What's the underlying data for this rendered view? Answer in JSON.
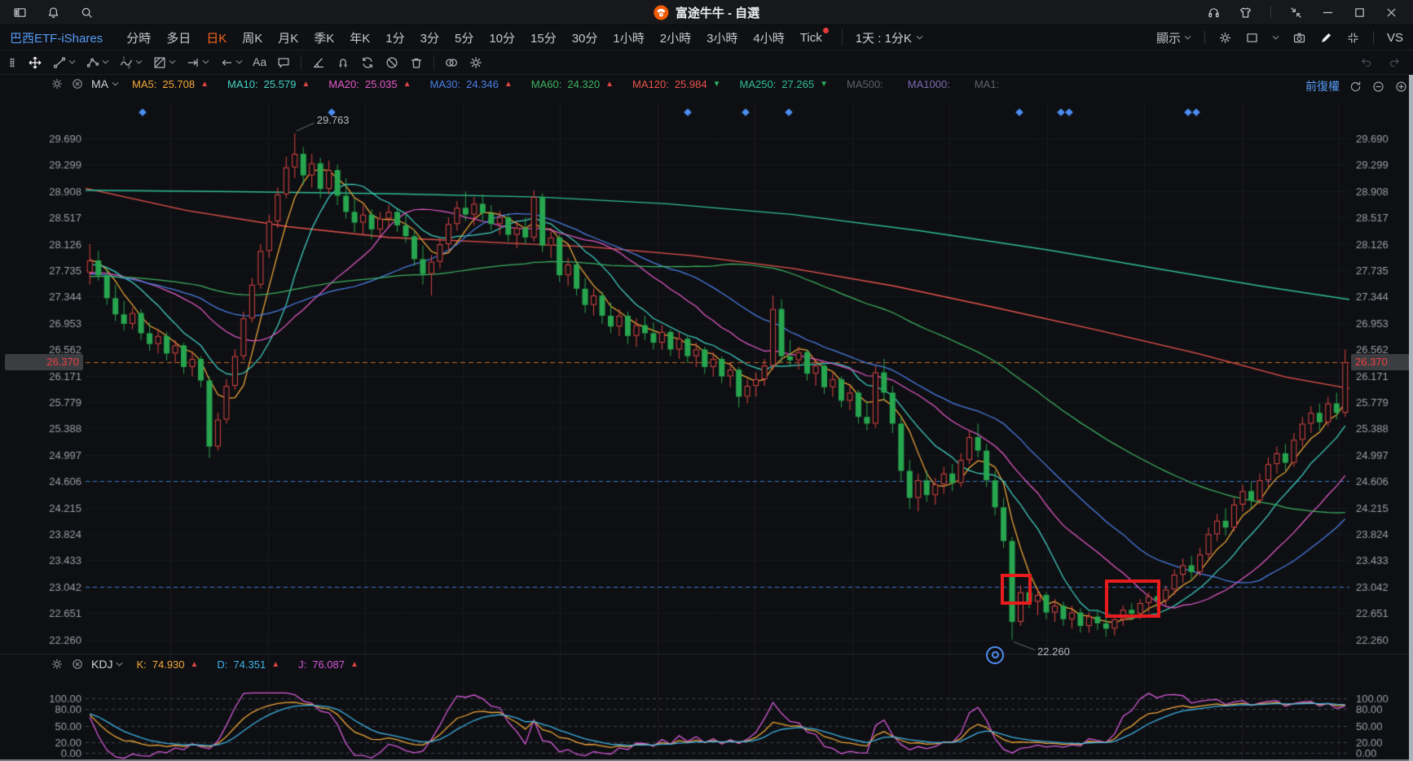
{
  "window": {
    "title": "富途牛牛 - 自選",
    "left_icons": [
      "panel-icon",
      "bell-icon",
      "search-icon"
    ],
    "right_icons": [
      "headset-icon",
      "shirt-icon",
      "divider",
      "snap-icon",
      "minimize-icon",
      "maximize-icon",
      "close-icon"
    ]
  },
  "tabbar": {
    "symbol": "巴西ETF-iShares",
    "tabs": [
      {
        "label": "分時"
      },
      {
        "label": "多日"
      },
      {
        "label": "日K",
        "active": true
      },
      {
        "label": "周K"
      },
      {
        "label": "月K"
      },
      {
        "label": "季K"
      },
      {
        "label": "年K"
      },
      {
        "label": "1分"
      },
      {
        "label": "3分"
      },
      {
        "label": "5分"
      },
      {
        "label": "10分"
      },
      {
        "label": "15分"
      },
      {
        "label": "30分"
      },
      {
        "label": "1小時"
      },
      {
        "label": "2小時"
      },
      {
        "label": "3小時"
      },
      {
        "label": "4小時"
      },
      {
        "label": "Tick",
        "dot": true
      }
    ],
    "combo_label": "1天 : 1分K",
    "display_label": "顯示",
    "vs_label": "VS",
    "right_icons": [
      "gear-icon",
      "layout-icon",
      "camera-icon",
      "pencil-icon",
      "shrink-icon"
    ]
  },
  "toolbar": {
    "tools": [
      {
        "icon": "grip-icon"
      },
      {
        "icon": "move-icon",
        "active": true
      },
      {
        "icon": "trend-line-icon",
        "chevron": true
      },
      {
        "icon": "polyline-icon",
        "chevron": true
      },
      {
        "icon": "wave-icon",
        "chevron": true
      },
      {
        "icon": "gann-icon",
        "chevron": true
      },
      {
        "icon": "measure-icon",
        "chevron": true
      },
      {
        "icon": "arrow-left-icon",
        "chevron": true
      },
      {
        "icon": "text-icon"
      },
      {
        "icon": "comment-icon"
      },
      {
        "divider": true
      },
      {
        "icon": "angle-icon"
      },
      {
        "icon": "magnet-icon"
      },
      {
        "icon": "replay-icon"
      },
      {
        "icon": "ban-icon"
      },
      {
        "icon": "trash-icon"
      },
      {
        "divider": true
      },
      {
        "icon": "compare-icon"
      },
      {
        "icon": "settings-icon"
      }
    ],
    "right_icons": [
      "undo-icon",
      "redo-icon"
    ]
  },
  "main_indicator": {
    "name": "MA",
    "items": [
      {
        "label": "MA5:",
        "value": "25.708",
        "color": "#f2a93b",
        "arrow": "up"
      },
      {
        "label": "MA10:",
        "value": "25.579",
        "color": "#41d3c6",
        "arrow": "up"
      },
      {
        "label": "MA20:",
        "value": "25.035",
        "color": "#e35ac8",
        "arrow": "up"
      },
      {
        "label": "MA30:",
        "value": "24.346",
        "color": "#4a7fe8",
        "arrow": "up"
      },
      {
        "label": "MA60:",
        "value": "24.320",
        "color": "#3db463",
        "arrow": "up"
      },
      {
        "label": "MA120:",
        "value": "25.984",
        "color": "#e8544e",
        "arrow": "down"
      },
      {
        "label": "MA250:",
        "value": "27.265",
        "color": "#2fbf9a",
        "arrow": "down"
      },
      {
        "label": "MA500:",
        "value": "",
        "color": "#5f646c"
      },
      {
        "label": "MA1000:",
        "value": "",
        "color": "#7e6bb5"
      },
      {
        "label": "MA1:",
        "value": "",
        "color": "#5f646c"
      }
    ],
    "adjust_label": "前復權",
    "right_icons": [
      "reset-icon",
      "zoom-out-icon",
      "zoom-in-icon"
    ]
  },
  "sub_indicator": {
    "name": "KDJ",
    "items": [
      {
        "label": "K:",
        "value": "74.930",
        "color": "#f2a93b",
        "arrow": "up"
      },
      {
        "label": "D:",
        "value": "74.351",
        "color": "#3eb2e8",
        "arrow": "up"
      },
      {
        "label": "J:",
        "value": "76.087",
        "color": "#d45ad8",
        "arrow": "up"
      }
    ]
  },
  "chart_data": {
    "type": "candlestick",
    "title": "巴西ETF-iShares 日K 前復權",
    "up_color": "#df4645",
    "down_color": "#27a54f",
    "y_axis_labels": [
      "29.690",
      "29.299",
      "28.908",
      "28.517",
      "28.126",
      "27.735",
      "27.344",
      "26.953",
      "26.562",
      "26.171",
      "25.779",
      "25.388",
      "24.997",
      "24.606",
      "24.215",
      "23.824",
      "23.433",
      "23.042",
      "22.651",
      "22.260"
    ],
    "current_price": {
      "value": 26.37,
      "label": "26.370",
      "line_color": "#c76a2b"
    },
    "levels": [
      {
        "price": 24.606,
        "color": "#3d7edb"
      },
      {
        "price": 23.042,
        "color": "#3d7edb"
      }
    ],
    "high_annotation": {
      "text": "29.763"
    },
    "low_annotation": {
      "text": "22.260"
    },
    "diamond_marker_xs": [
      175,
      407,
      844,
      915,
      968,
      1251,
      1302,
      1312,
      1458,
      1468
    ],
    "red_boxes": [
      {
        "i0": 107.2,
        "i1": 110.8,
        "p0": 22.78,
        "p1": 23.23
      },
      {
        "i0": 119.4,
        "i1": 125.9,
        "p0": 22.58,
        "p1": 23.15
      }
    ],
    "ma_computed": [
      {
        "period": 5,
        "color": "#f2a93b"
      },
      {
        "period": 10,
        "color": "#41d3c6"
      },
      {
        "period": 20,
        "color": "#e35ac8"
      },
      {
        "period": 30,
        "color": "#4a7fe8"
      },
      {
        "period": 60,
        "color": "#3db463"
      }
    ],
    "ma_overlays": [
      {
        "name": "MA120",
        "color": "#e8544e",
        "points": [
          [
            0,
            28.95
          ],
          [
            0.08,
            28.62
          ],
          [
            0.16,
            28.38
          ],
          [
            0.24,
            28.22
          ],
          [
            0.32,
            28.15
          ],
          [
            0.4,
            28.08
          ],
          [
            0.48,
            27.95
          ],
          [
            0.56,
            27.76
          ],
          [
            0.64,
            27.5
          ],
          [
            0.72,
            27.18
          ],
          [
            0.8,
            26.85
          ],
          [
            0.88,
            26.5
          ],
          [
            0.95,
            26.15
          ],
          [
            1,
            25.98
          ]
        ]
      },
      {
        "name": "MA250",
        "color": "#2fbf9a",
        "points": [
          [
            0,
            28.92
          ],
          [
            0.12,
            28.9
          ],
          [
            0.24,
            28.87
          ],
          [
            0.36,
            28.82
          ],
          [
            0.46,
            28.72
          ],
          [
            0.56,
            28.56
          ],
          [
            0.66,
            28.32
          ],
          [
            0.76,
            28.04
          ],
          [
            0.86,
            27.72
          ],
          [
            0.93,
            27.5
          ],
          [
            1,
            27.3
          ]
        ]
      }
    ],
    "candles": [
      [
        27.7,
        28.12,
        27.52,
        27.88
      ],
      [
        27.88,
        28.02,
        27.58,
        27.66
      ],
      [
        27.66,
        27.78,
        27.22,
        27.32
      ],
      [
        27.32,
        27.52,
        26.98,
        27.08
      ],
      [
        27.08,
        27.28,
        26.84,
        26.94
      ],
      [
        26.94,
        27.18,
        26.86,
        27.1
      ],
      [
        27.1,
        27.16,
        26.7,
        26.8
      ],
      [
        26.8,
        26.96,
        26.54,
        26.64
      ],
      [
        26.64,
        26.86,
        26.5,
        26.76
      ],
      [
        26.76,
        26.82,
        26.4,
        26.5
      ],
      [
        26.5,
        26.7,
        26.36,
        26.62
      ],
      [
        26.62,
        26.66,
        26.2,
        26.3
      ],
      [
        26.3,
        26.52,
        26.16,
        26.42
      ],
      [
        26.42,
        26.46,
        26.0,
        26.1
      ],
      [
        26.1,
        26.16,
        24.95,
        25.12
      ],
      [
        25.12,
        25.62,
        25.06,
        25.52
      ],
      [
        25.52,
        26.12,
        25.46,
        26.02
      ],
      [
        26.02,
        26.56,
        25.96,
        26.46
      ],
      [
        26.46,
        27.12,
        26.4,
        27.02
      ],
      [
        27.02,
        27.62,
        26.96,
        27.52
      ],
      [
        27.52,
        28.12,
        27.46,
        28.02
      ],
      [
        28.02,
        28.56,
        27.92,
        28.46
      ],
      [
        28.46,
        28.96,
        28.36,
        28.86
      ],
      [
        28.86,
        29.42,
        28.8,
        29.26
      ],
      [
        29.26,
        29.763,
        29.1,
        29.46
      ],
      [
        29.46,
        29.56,
        29.0,
        29.14
      ],
      [
        29.14,
        29.46,
        28.96,
        29.32
      ],
      [
        29.32,
        29.4,
        28.8,
        28.94
      ],
      [
        28.94,
        29.36,
        28.86,
        29.22
      ],
      [
        29.22,
        29.3,
        28.7,
        28.84
      ],
      [
        28.84,
        29.1,
        28.5,
        28.6
      ],
      [
        28.6,
        28.8,
        28.3,
        28.44
      ],
      [
        28.44,
        28.7,
        28.26,
        28.56
      ],
      [
        28.56,
        28.64,
        28.2,
        28.34
      ],
      [
        28.34,
        28.6,
        28.24,
        28.5
      ],
      [
        28.5,
        28.7,
        28.36,
        28.6
      ],
      [
        28.6,
        28.66,
        28.3,
        28.4
      ],
      [
        28.4,
        28.56,
        28.14,
        28.24
      ],
      [
        28.24,
        28.34,
        27.8,
        27.9
      ],
      [
        27.9,
        28.1,
        27.52,
        27.68
      ],
      [
        27.68,
        27.96,
        27.36,
        27.86
      ],
      [
        27.86,
        28.22,
        27.76,
        28.12
      ],
      [
        28.12,
        28.52,
        28.02,
        28.42
      ],
      [
        28.42,
        28.76,
        28.32,
        28.66
      ],
      [
        28.66,
        28.9,
        28.46,
        28.56
      ],
      [
        28.56,
        28.82,
        28.4,
        28.72
      ],
      [
        28.72,
        28.86,
        28.46,
        28.58
      ],
      [
        28.58,
        28.7,
        28.32,
        28.42
      ],
      [
        28.42,
        28.62,
        28.26,
        28.52
      ],
      [
        28.52,
        28.58,
        28.16,
        28.26
      ],
      [
        28.26,
        28.46,
        28.06,
        28.36
      ],
      [
        28.36,
        28.52,
        28.12,
        28.22
      ],
      [
        28.22,
        28.92,
        28.16,
        28.82
      ],
      [
        28.82,
        28.88,
        28.0,
        28.1
      ],
      [
        28.1,
        28.32,
        27.92,
        28.22
      ],
      [
        28.22,
        28.26,
        27.56,
        27.66
      ],
      [
        27.66,
        27.92,
        27.5,
        27.82
      ],
      [
        27.82,
        27.86,
        27.36,
        27.46
      ],
      [
        27.46,
        27.62,
        27.1,
        27.22
      ],
      [
        27.22,
        27.46,
        27.06,
        27.36
      ],
      [
        27.36,
        27.42,
        26.94,
        27.06
      ],
      [
        27.06,
        27.26,
        26.8,
        26.9
      ],
      [
        26.9,
        27.16,
        26.76,
        27.06
      ],
      [
        27.06,
        27.12,
        26.64,
        26.76
      ],
      [
        26.76,
        27.02,
        26.6,
        26.92
      ],
      [
        26.92,
        27.06,
        26.7,
        26.8
      ],
      [
        26.8,
        26.96,
        26.56,
        26.66
      ],
      [
        26.66,
        26.92,
        26.56,
        26.82
      ],
      [
        26.82,
        26.86,
        26.46,
        26.56
      ],
      [
        26.56,
        26.82,
        26.42,
        26.72
      ],
      [
        26.72,
        26.76,
        26.36,
        26.46
      ],
      [
        26.46,
        26.66,
        26.3,
        26.56
      ],
      [
        26.56,
        26.6,
        26.2,
        26.3
      ],
      [
        26.3,
        26.52,
        26.16,
        26.42
      ],
      [
        26.42,
        26.46,
        26.06,
        26.16
      ],
      [
        26.16,
        26.36,
        26.0,
        26.26
      ],
      [
        26.26,
        26.3,
        25.7,
        25.86
      ],
      [
        25.86,
        26.12,
        25.76,
        26.02
      ],
      [
        26.02,
        26.22,
        25.86,
        26.12
      ],
      [
        26.12,
        26.42,
        26.02,
        26.32
      ],
      [
        26.32,
        27.36,
        26.26,
        27.16
      ],
      [
        27.16,
        27.3,
        26.36,
        26.46
      ],
      [
        26.46,
        26.7,
        26.3,
        26.4
      ],
      [
        26.4,
        26.6,
        26.26,
        26.52
      ],
      [
        26.52,
        26.56,
        26.1,
        26.2
      ],
      [
        26.2,
        26.42,
        26.02,
        26.32
      ],
      [
        26.32,
        26.36,
        25.9,
        26.0
      ],
      [
        26.0,
        26.22,
        25.86,
        26.12
      ],
      [
        26.12,
        26.16,
        25.7,
        25.8
      ],
      [
        25.8,
        26.02,
        25.66,
        25.92
      ],
      [
        25.92,
        25.96,
        25.46,
        25.56
      ],
      [
        25.56,
        25.8,
        25.36,
        25.46
      ],
      [
        25.46,
        26.32,
        25.4,
        26.22
      ],
      [
        26.22,
        26.42,
        25.8,
        25.92
      ],
      [
        25.92,
        26.02,
        25.32,
        25.46
      ],
      [
        25.46,
        25.56,
        24.6,
        24.76
      ],
      [
        24.76,
        24.92,
        24.2,
        24.36
      ],
      [
        24.36,
        24.72,
        24.16,
        24.62
      ],
      [
        24.62,
        24.76,
        24.3,
        24.4
      ],
      [
        24.4,
        24.66,
        24.26,
        24.56
      ],
      [
        24.56,
        24.82,
        24.42,
        24.72
      ],
      [
        24.72,
        24.86,
        24.46,
        24.58
      ],
      [
        24.58,
        25.02,
        24.52,
        24.92
      ],
      [
        24.92,
        25.36,
        24.86,
        25.26
      ],
      [
        25.26,
        25.46,
        24.96,
        25.06
      ],
      [
        25.06,
        25.16,
        24.52,
        24.62
      ],
      [
        24.62,
        24.76,
        24.1,
        24.22
      ],
      [
        24.22,
        24.36,
        23.62,
        23.72
      ],
      [
        23.72,
        23.78,
        22.26,
        22.52
      ],
      [
        22.52,
        23.06,
        22.46,
        22.96
      ],
      [
        22.96,
        23.12,
        22.72,
        22.82
      ],
      [
        22.82,
        23.02,
        22.62,
        22.92
      ],
      [
        22.92,
        22.96,
        22.56,
        22.66
      ],
      [
        22.66,
        22.86,
        22.52,
        22.76
      ],
      [
        22.76,
        22.82,
        22.46,
        22.56
      ],
      [
        22.56,
        22.76,
        22.42,
        22.66
      ],
      [
        22.66,
        22.72,
        22.36,
        22.46
      ],
      [
        22.46,
        22.66,
        22.36,
        22.6
      ],
      [
        22.6,
        22.7,
        22.4,
        22.5
      ],
      [
        22.5,
        22.6,
        22.3,
        22.42
      ],
      [
        22.42,
        22.62,
        22.32,
        22.56
      ],
      [
        22.56,
        22.76,
        22.46,
        22.7
      ],
      [
        22.7,
        22.8,
        22.54,
        22.64
      ],
      [
        22.64,
        22.86,
        22.56,
        22.8
      ],
      [
        22.8,
        22.96,
        22.66,
        22.9
      ],
      [
        22.9,
        23.0,
        22.7,
        22.84
      ],
      [
        22.84,
        23.06,
        22.76,
        23.0
      ],
      [
        23.0,
        23.3,
        22.92,
        23.22
      ],
      [
        23.22,
        23.46,
        23.1,
        23.36
      ],
      [
        23.36,
        23.5,
        23.14,
        23.26
      ],
      [
        23.26,
        23.62,
        23.2,
        23.52
      ],
      [
        23.52,
        23.92,
        23.46,
        23.82
      ],
      [
        23.82,
        24.12,
        23.72,
        24.02
      ],
      [
        24.02,
        24.2,
        23.8,
        23.92
      ],
      [
        23.92,
        24.36,
        23.86,
        24.26
      ],
      [
        24.26,
        24.56,
        24.16,
        24.46
      ],
      [
        24.46,
        24.6,
        24.2,
        24.32
      ],
      [
        24.32,
        24.72,
        24.26,
        24.62
      ],
      [
        24.62,
        24.96,
        24.52,
        24.86
      ],
      [
        24.86,
        25.12,
        24.72,
        25.02
      ],
      [
        25.02,
        25.16,
        24.76,
        24.88
      ],
      [
        24.88,
        25.32,
        24.82,
        25.22
      ],
      [
        25.22,
        25.56,
        25.12,
        25.46
      ],
      [
        25.46,
        25.72,
        25.32,
        25.62
      ],
      [
        25.62,
        25.76,
        25.36,
        25.48
      ],
      [
        25.48,
        25.86,
        25.42,
        25.76
      ],
      [
        25.76,
        25.92,
        25.52,
        25.62
      ],
      [
        25.62,
        26.56,
        25.56,
        26.37
      ]
    ],
    "sub_chart": {
      "type": "line",
      "name": "KDJ",
      "grid_labels": [
        "100.00",
        "80.00",
        "50.00",
        "20.00",
        "0.00"
      ],
      "grid_values": [
        100,
        80,
        50,
        20,
        0
      ],
      "series_colors": {
        "K": "#f2a93b",
        "D": "#3eb2e8",
        "J": "#d45ad8"
      }
    }
  }
}
